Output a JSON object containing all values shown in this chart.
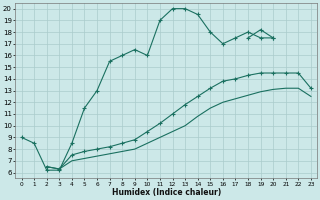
{
  "xlabel": "Humidex (Indice chaleur)",
  "bg_color": "#cce8e8",
  "grid_color": "#aacccc",
  "line_color": "#1a7060",
  "xlim": [
    -0.5,
    23.5
  ],
  "ylim": [
    5.5,
    20.5
  ],
  "xticks": [
    0,
    1,
    2,
    3,
    4,
    5,
    6,
    7,
    8,
    9,
    10,
    11,
    12,
    13,
    14,
    15,
    16,
    17,
    18,
    19,
    20,
    21,
    22,
    23
  ],
  "yticks": [
    6,
    7,
    8,
    9,
    10,
    11,
    12,
    13,
    14,
    15,
    16,
    17,
    18,
    19,
    20
  ],
  "lines": [
    {
      "x": [
        0,
        1,
        2,
        3,
        4,
        5,
        6,
        7,
        8,
        9,
        10,
        11,
        12,
        13,
        14,
        15,
        16,
        17,
        18,
        19,
        20
      ],
      "y": [
        9,
        8.5,
        6.2,
        6.2,
        8.5,
        11.5,
        13,
        15.5,
        16,
        16.5,
        16,
        19,
        20,
        20,
        19.5,
        18,
        17,
        17.5,
        18,
        17.5,
        17.5
      ],
      "marker": true
    },
    {
      "x": [
        18,
        19,
        20
      ],
      "y": [
        17.5,
        18.2,
        17.5
      ],
      "marker": true
    },
    {
      "x": [
        2,
        3,
        4,
        5,
        6,
        7,
        8,
        9,
        10,
        11,
        12,
        13,
        14,
        15,
        16,
        17,
        18,
        19,
        20,
        21,
        22,
        23
      ],
      "y": [
        6.5,
        6.3,
        7.5,
        7.8,
        8.0,
        8.2,
        8.5,
        8.8,
        9.5,
        10.2,
        11.0,
        11.8,
        12.5,
        13.2,
        13.8,
        14.0,
        14.3,
        14.5,
        14.5,
        14.5,
        14.5,
        13.2
      ],
      "marker": true
    },
    {
      "x": [
        2,
        3,
        4,
        5,
        6,
        7,
        8,
        9,
        10,
        11,
        12,
        13,
        14,
        15,
        16,
        17,
        18,
        19,
        20,
        21,
        22,
        23
      ],
      "y": [
        6.5,
        6.3,
        7.0,
        7.2,
        7.4,
        7.6,
        7.8,
        8.0,
        8.5,
        9.0,
        9.5,
        10.0,
        10.8,
        11.5,
        12.0,
        12.3,
        12.6,
        12.9,
        13.1,
        13.2,
        13.2,
        12.5
      ],
      "marker": false
    }
  ]
}
